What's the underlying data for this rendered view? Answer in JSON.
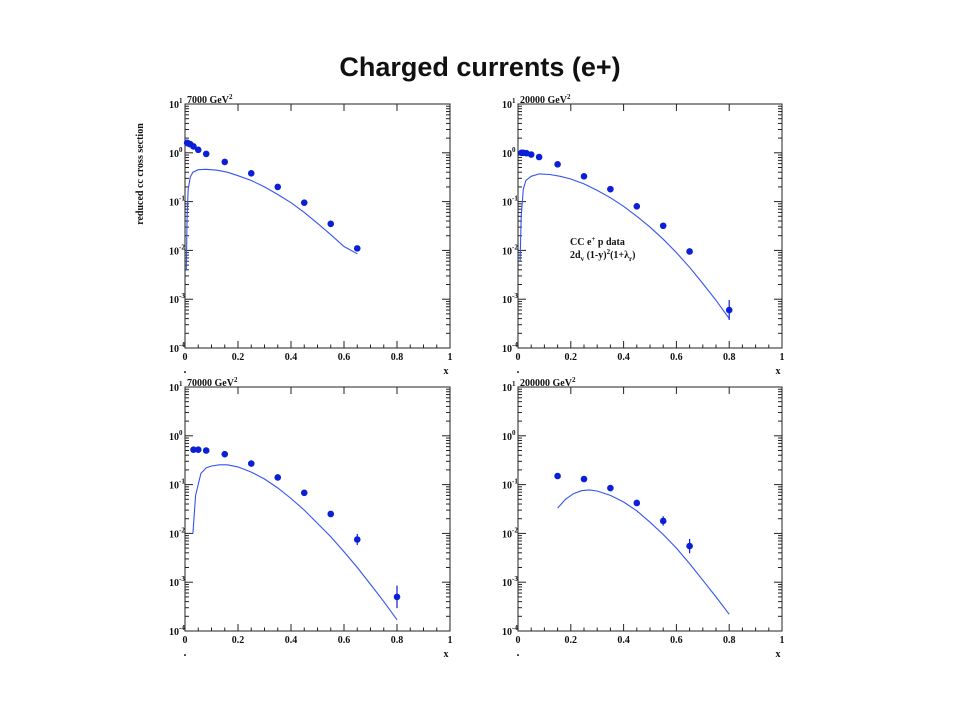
{
  "page": {
    "title": "Charged currents (e+)"
  },
  "chart_data": [
    {
      "type": "scatter",
      "panel_label": "7000 GeV",
      "panel_label_sup": "2",
      "ylabel": "reduced cc cross section",
      "xlabel": "x",
      "xlim": [
        0,
        1
      ],
      "ylim": [
        0.0001,
        10
      ],
      "yscale": "log",
      "x_ticks": [
        "0",
        "0.2",
        "0.4",
        "0.6",
        "0.8",
        "1"
      ],
      "y_ticks": [
        {
          "base": "10",
          "exp": "1"
        },
        {
          "base": "10",
          "exp": "0"
        },
        {
          "base": "10",
          "exp": "-1"
        },
        {
          "base": "10",
          "exp": "-2"
        },
        {
          "base": "10",
          "exp": "-3"
        },
        {
          "base": "10",
          "exp": "-4"
        }
      ],
      "corner_mark": ".",
      "legend": null,
      "data_points": {
        "x": [
          0.008,
          0.013,
          0.02,
          0.032,
          0.05,
          0.08,
          0.15,
          0.25,
          0.35,
          0.45,
          0.55,
          0.65
        ],
        "y": [
          1.6,
          1.55,
          1.5,
          1.35,
          1.15,
          0.95,
          0.65,
          0.38,
          0.2,
          0.095,
          0.035,
          0.011
        ],
        "yerr": [
          0,
          0,
          0,
          0,
          0,
          0,
          0,
          0,
          0,
          0,
          0,
          0
        ]
      },
      "curve": {
        "x": [
          0.005,
          0.008,
          0.012,
          0.02,
          0.03,
          0.05,
          0.08,
          0.12,
          0.16,
          0.2,
          0.25,
          0.3,
          0.35,
          0.4,
          0.45,
          0.5,
          0.55,
          0.6,
          0.65
        ],
        "y": [
          0.004,
          0.05,
          0.18,
          0.32,
          0.4,
          0.45,
          0.46,
          0.44,
          0.4,
          0.34,
          0.27,
          0.2,
          0.14,
          0.095,
          0.06,
          0.036,
          0.021,
          0.012,
          0.0085
        ]
      }
    },
    {
      "type": "scatter",
      "panel_label": "20000 GeV",
      "panel_label_sup": "2",
      "ylabel": "",
      "xlabel": "x",
      "xlim": [
        0,
        1
      ],
      "ylim": [
        0.0001,
        10
      ],
      "yscale": "log",
      "x_ticks": [
        "0",
        "0.2",
        "0.4",
        "0.6",
        "0.8",
        "1"
      ],
      "y_ticks": [
        {
          "base": "10",
          "exp": "1"
        },
        {
          "base": "10",
          "exp": "0"
        },
        {
          "base": "10",
          "exp": "-1"
        },
        {
          "base": "10",
          "exp": "-2"
        },
        {
          "base": "10",
          "exp": "-3"
        },
        {
          "base": "10",
          "exp": "-4"
        }
      ],
      "corner_mark": ".",
      "legend": {
        "line1_pre": "CC e",
        "line1_sup": "+",
        "line1_post": "p data",
        "line2_pre": "2d",
        "line2_sub1": "v",
        "line2_mid": " (1-y)",
        "line2_sup": "2",
        "line2_post": "(1+λ",
        "line2_sub2": "r",
        "line2_end": ")"
      },
      "data_points": {
        "x": [
          0.013,
          0.02,
          0.032,
          0.05,
          0.08,
          0.15,
          0.25,
          0.35,
          0.45,
          0.55,
          0.65,
          0.8
        ],
        "y": [
          1.0,
          1.0,
          0.98,
          0.92,
          0.82,
          0.58,
          0.33,
          0.18,
          0.08,
          0.032,
          0.0095,
          0.0006
        ],
        "yerr": [
          0,
          0,
          0,
          0,
          0,
          0,
          0,
          0,
          0,
          0,
          0,
          0.6
        ]
      },
      "curve": {
        "x": [
          0.008,
          0.012,
          0.02,
          0.03,
          0.05,
          0.08,
          0.12,
          0.16,
          0.2,
          0.25,
          0.3,
          0.35,
          0.4,
          0.45,
          0.5,
          0.55,
          0.6,
          0.65,
          0.7,
          0.75,
          0.8
        ],
        "y": [
          0.006,
          0.05,
          0.18,
          0.27,
          0.33,
          0.37,
          0.36,
          0.33,
          0.29,
          0.23,
          0.17,
          0.12,
          0.08,
          0.05,
          0.03,
          0.017,
          0.009,
          0.0045,
          0.0021,
          0.00095,
          0.0004
        ]
      }
    },
    {
      "type": "scatter",
      "panel_label": "70000 GeV",
      "panel_label_sup": "2",
      "ylabel": "",
      "xlabel": "x",
      "xlim": [
        0,
        1
      ],
      "ylim": [
        0.0001,
        10
      ],
      "yscale": "log",
      "x_ticks": [
        "0",
        "0.2",
        "0.4",
        "0.6",
        "0.8",
        "1"
      ],
      "y_ticks": [
        {
          "base": "10",
          "exp": "1"
        },
        {
          "base": "10",
          "exp": "0"
        },
        {
          "base": "10",
          "exp": "-1"
        },
        {
          "base": "10",
          "exp": "-2"
        },
        {
          "base": "10",
          "exp": "-3"
        },
        {
          "base": "10",
          "exp": "-4"
        }
      ],
      "corner_mark": ".",
      "legend": null,
      "data_points": {
        "x": [
          0.032,
          0.05,
          0.08,
          0.15,
          0.25,
          0.35,
          0.45,
          0.55,
          0.65,
          0.8
        ],
        "y": [
          0.52,
          0.52,
          0.5,
          0.42,
          0.27,
          0.14,
          0.068,
          0.025,
          0.0075,
          0.0005
        ],
        "yerr": [
          0,
          0,
          0,
          0,
          0,
          0,
          0,
          0,
          0.3,
          0.7
        ]
      },
      "curve": {
        "x": [
          0.03,
          0.04,
          0.06,
          0.08,
          0.1,
          0.13,
          0.16,
          0.2,
          0.25,
          0.3,
          0.35,
          0.4,
          0.45,
          0.5,
          0.55,
          0.6,
          0.65,
          0.7,
          0.75,
          0.8
        ],
        "y": [
          0.01,
          0.06,
          0.17,
          0.22,
          0.24,
          0.255,
          0.255,
          0.23,
          0.18,
          0.13,
          0.085,
          0.052,
          0.03,
          0.016,
          0.0085,
          0.0042,
          0.002,
          0.0009,
          0.0004,
          0.00017
        ]
      }
    },
    {
      "type": "scatter",
      "panel_label": "200000 GeV",
      "panel_label_sup": "2",
      "ylabel": "",
      "xlabel": "x",
      "xlim": [
        0,
        1
      ],
      "ylim": [
        0.0001,
        10
      ],
      "yscale": "log",
      "x_ticks": [
        "0",
        "0.2",
        "0.4",
        "0.6",
        "0.8",
        "1"
      ],
      "y_ticks": [
        {
          "base": "10",
          "exp": "1"
        },
        {
          "base": "10",
          "exp": "0"
        },
        {
          "base": "10",
          "exp": "-1"
        },
        {
          "base": "10",
          "exp": "-2"
        },
        {
          "base": "10",
          "exp": "-3"
        },
        {
          "base": "10",
          "exp": "-4"
        }
      ],
      "corner_mark": ".",
      "legend": null,
      "data_points": {
        "x": [
          0.15,
          0.25,
          0.35,
          0.45,
          0.55,
          0.65
        ],
        "y": [
          0.15,
          0.13,
          0.085,
          0.042,
          0.018,
          0.0055
        ],
        "yerr": [
          0,
          0,
          0,
          0,
          0.25,
          0.4
        ]
      },
      "curve": {
        "x": [
          0.15,
          0.18,
          0.21,
          0.24,
          0.27,
          0.3,
          0.35,
          0.4,
          0.45,
          0.5,
          0.55,
          0.6,
          0.65,
          0.7,
          0.75,
          0.8
        ],
        "y": [
          0.033,
          0.05,
          0.065,
          0.075,
          0.078,
          0.074,
          0.06,
          0.044,
          0.029,
          0.017,
          0.0095,
          0.005,
          0.0024,
          0.0011,
          0.0005,
          0.00022
        ]
      }
    }
  ]
}
